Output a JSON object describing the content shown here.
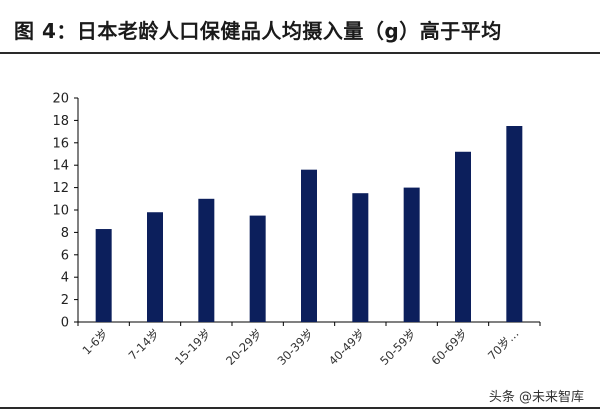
{
  "figure": {
    "title": "图 4：日本老龄人口保健品人均摄入量（g）高于平均"
  },
  "chart_data": {
    "type": "bar",
    "categories": [
      "1-6岁",
      "7-14岁",
      "15-19岁",
      "20-29岁",
      "30-39岁",
      "40-49岁",
      "50-59岁",
      "60-69岁",
      "70岁…"
    ],
    "values": [
      8.3,
      9.8,
      11.0,
      9.5,
      13.6,
      11.5,
      12.0,
      15.2,
      17.5
    ],
    "ylim": [
      0,
      20
    ],
    "yticks": [
      0,
      2,
      4,
      6,
      8,
      10,
      12,
      14,
      16,
      18,
      20
    ],
    "grid": false,
    "legend": "none",
    "bar_color": "#0c1f5c",
    "axis_color": "#000000"
  },
  "watermark": "头条 @未来智库"
}
